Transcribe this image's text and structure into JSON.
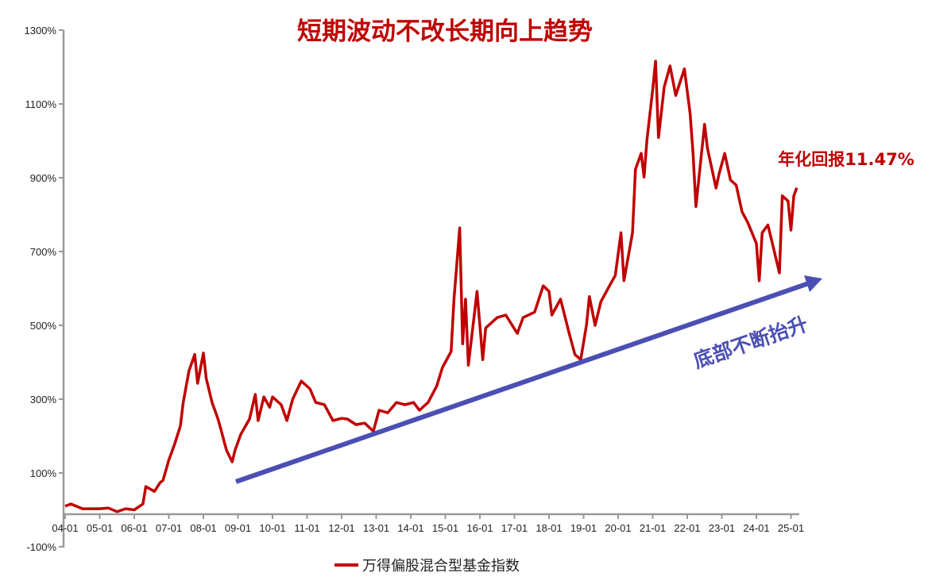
{
  "chart_data": {
    "type": "line",
    "title": "短期波动不改长期向上趋势",
    "ylim": [
      -100,
      1300
    ],
    "yticks": [
      "1300%",
      "1100%",
      "900%",
      "700%",
      "500%",
      "300%",
      "100%",
      "-100%"
    ],
    "ytick_values": [
      1300,
      1100,
      900,
      700,
      500,
      300,
      100,
      -100
    ],
    "xticks": [
      "04-01",
      "05-01",
      "06-01",
      "07-01",
      "08-01",
      "09-01",
      "10-01",
      "11-01",
      "12-01",
      "13-01",
      "14-01",
      "15-01",
      "16-01",
      "17-01",
      "18-01",
      "19-01",
      "20-01",
      "21-01",
      "22-01",
      "23-01",
      "24-01",
      "25-01"
    ],
    "xtick_dates": [
      "2004-01",
      "2005-01",
      "2006-01",
      "2007-01",
      "2008-01",
      "2009-01",
      "2010-01",
      "2011-01",
      "2012-01",
      "2013-01",
      "2014-01",
      "2015-01",
      "2016-01",
      "2017-01",
      "2018-01",
      "2019-01",
      "2020-01",
      "2021-01",
      "2022-01",
      "2023-01",
      "2024-01",
      "2025-01"
    ],
    "grid": false,
    "legend_position": "bottom",
    "series": [
      {
        "name": "万得偏股混合型基金指数",
        "color": "#c00000",
        "x": [
          "2004-01",
          "2004-03",
          "2004-07",
          "2005-01",
          "2005-04",
          "2005-07",
          "2005-10",
          "2006-01",
          "2006-04",
          "2006-05",
          "2006-08",
          "2006-10",
          "2006-11",
          "2007-01",
          "2007-03",
          "2007-05",
          "2007-06",
          "2007-08",
          "2007-10",
          "2007-11",
          "2008-01",
          "2008-02",
          "2008-04",
          "2008-06",
          "2008-07",
          "2008-09",
          "2008-11",
          "2008-12",
          "2009-02",
          "2009-05",
          "2009-07",
          "2009-08",
          "2009-10",
          "2009-12",
          "2010-01",
          "2010-04",
          "2010-06",
          "2010-08",
          "2010-11",
          "2011-02",
          "2011-04",
          "2011-07",
          "2011-10",
          "2012-01",
          "2012-03",
          "2012-06",
          "2012-09",
          "2012-12",
          "2013-02",
          "2013-05",
          "2013-08",
          "2013-11",
          "2014-02",
          "2014-04",
          "2014-07",
          "2014-10",
          "2014-12",
          "2015-03",
          "2015-04",
          "2015-06",
          "2015-07",
          "2015-08",
          "2015-09",
          "2015-12",
          "2016-02",
          "2016-03",
          "2016-07",
          "2016-10",
          "2017-02",
          "2017-04",
          "2017-08",
          "2017-11",
          "2018-01",
          "2018-02",
          "2018-05",
          "2018-08",
          "2018-10",
          "2018-12",
          "2019-02",
          "2019-03",
          "2019-05",
          "2019-07",
          "2019-10",
          "2019-12",
          "2020-02",
          "2020-03",
          "2020-06",
          "2020-07",
          "2020-09",
          "2020-10",
          "2020-11",
          "2021-01",
          "2021-02",
          "2021-03",
          "2021-05",
          "2021-07",
          "2021-09",
          "2021-12",
          "2022-02",
          "2022-03",
          "2022-04",
          "2022-07",
          "2022-08",
          "2022-11",
          "2022-12",
          "2023-02",
          "2023-04",
          "2023-06",
          "2023-08",
          "2023-10",
          "2024-01",
          "2024-02",
          "2024-03",
          "2024-05",
          "2024-07",
          "2024-09",
          "2024-10",
          "2024-12",
          "2025-01",
          "2025-02",
          "2025-03"
        ],
        "values": [
          10,
          16,
          3,
          3,
          5,
          -5,
          3,
          0,
          16,
          63,
          50,
          74,
          80,
          135,
          178,
          227,
          291,
          377,
          421,
          343,
          425,
          356,
          291,
          248,
          220,
          162,
          130,
          162,
          205,
          246,
          313,
          242,
          306,
          278,
          306,
          285,
          242,
          300,
          349,
          328,
          291,
          285,
          242,
          248,
          246,
          231,
          235,
          213,
          270,
          263,
          291,
          285,
          291,
          270,
          291,
          335,
          386,
          429,
          571,
          764,
          450,
          571,
          392,
          592,
          407,
          493,
          521,
          528,
          478,
          521,
          536,
          607,
          592,
          528,
          571,
          478,
          421,
          407,
          500,
          578,
          500,
          564,
          607,
          635,
          751,
          621,
          751,
          923,
          966,
          902,
          1001,
          1139,
          1216,
          1009,
          1146,
          1203,
          1123,
          1195,
          1074,
          966,
          822,
          1045,
          980,
          872,
          909,
          966,
          894,
          880,
          808,
          779,
          722,
          621,
          751,
          772,
          707,
          642,
          851,
          837,
          758,
          851,
          873
        ]
      }
    ],
    "annotations": {
      "annual_return": "年化回报11.47%",
      "trend_label": "底部不断抬升",
      "trend_arrow_color": "#4b4fb4"
    }
  }
}
